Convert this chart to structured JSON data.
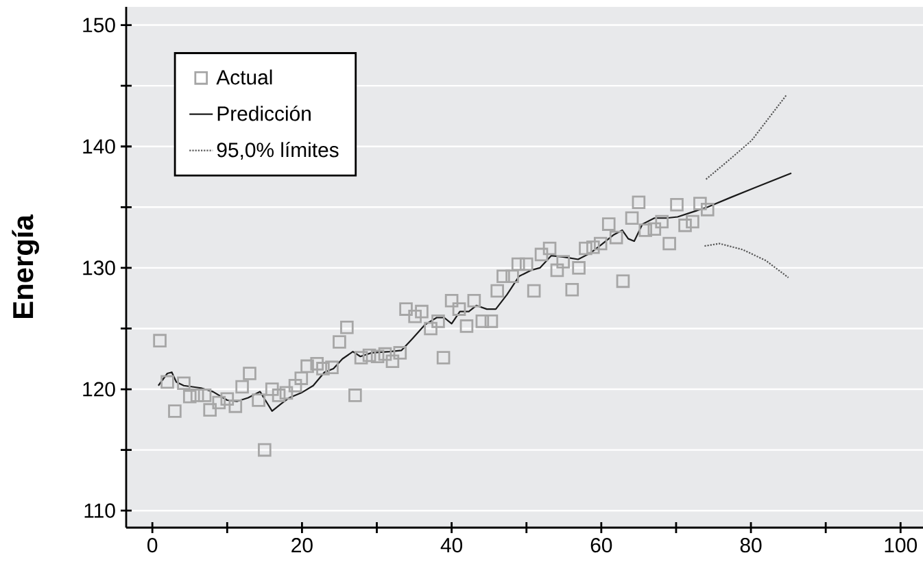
{
  "chart_data": {
    "type": "scatter",
    "ylabel": "Energía",
    "xlim": [
      -3.5,
      103
    ],
    "ylim": [
      108.6,
      151.5
    ],
    "xticks": [
      0,
      {
        "value": 10,
        "label": null
      },
      20,
      {
        "value": 30,
        "label": null
      },
      40,
      {
        "value": 50,
        "label": null
      },
      60,
      {
        "value": 70,
        "label": null
      },
      80,
      {
        "value": 90,
        "label": null
      },
      100
    ],
    "yticks": [
      110,
      {
        "value": 115,
        "label": null
      },
      120,
      {
        "value": 125,
        "label": null
      },
      130,
      {
        "value": 135,
        "label": null
      },
      140,
      {
        "value": 145,
        "label": null
      },
      150
    ],
    "grid": "y",
    "legend": "top left",
    "series": [
      {
        "name": "Actual",
        "marker": "square",
        "color": "#a6a6a6",
        "x": [
          1,
          2,
          3,
          4.2,
          5,
          6,
          7,
          7.7,
          8.9,
          10,
          11.1,
          12,
          13,
          14.2,
          15,
          16,
          16.9,
          17.9,
          19.1,
          19.9,
          20.7,
          22,
          22.8,
          24,
          25,
          26,
          27.1,
          27.9,
          29,
          30.1,
          31.1,
          32.1,
          33.1,
          33.9,
          35.1,
          36,
          37.2,
          38.2,
          38.9,
          40,
          41,
          42,
          43,
          44.1,
          45.3,
          46.1,
          46.9,
          48.1,
          48.9,
          50,
          51,
          52,
          53.1,
          54.1,
          54.9,
          56.1,
          57,
          57.9,
          58.9,
          59.9,
          61,
          62,
          62.9,
          64.1,
          65,
          65.9,
          67.1,
          68.1,
          69.1,
          70.1,
          71.2,
          72.2,
          73.2,
          74.2
        ],
        "values": [
          124.0,
          120.6,
          118.2,
          120.5,
          119.4,
          119.5,
          119.5,
          118.3,
          118.9,
          119.2,
          118.6,
          120.2,
          121.3,
          119.1,
          115.0,
          120.0,
          119.5,
          119.7,
          120.3,
          120.9,
          121.9,
          122.1,
          121.7,
          121.8,
          123.9,
          125.1,
          119.5,
          122.6,
          122.8,
          122.7,
          122.9,
          122.3,
          123.0,
          126.6,
          126.0,
          126.4,
          125.0,
          125.6,
          122.6,
          127.3,
          126.6,
          125.2,
          127.3,
          125.6,
          125.6,
          128.1,
          129.3,
          129.3,
          130.3,
          130.3,
          128.1,
          131.1,
          131.6,
          129.8,
          130.5,
          128.2,
          130.0,
          131.6,
          131.7,
          132.0,
          133.6,
          132.5,
          128.9,
          134.1,
          135.4,
          133.1,
          133.2,
          133.8,
          132.0,
          135.2,
          133.5,
          133.8,
          135.3,
          134.8
        ]
      },
      {
        "name": "Predicción",
        "type": "line",
        "line_style": "solid",
        "color": "#1a1a1a",
        "x": [
          0.8,
          2,
          2.6,
          3.2,
          4.2,
          6.5,
          8.1,
          10,
          11.3,
          12.8,
          14.4,
          15.2,
          16,
          17.2,
          18.3,
          19.9,
          21.5,
          23,
          24.2,
          25.4,
          26.8,
          27.8,
          29.3,
          31.7,
          33.3,
          34.8,
          36.4,
          38,
          39,
          40,
          41.1,
          42.3,
          43.3,
          44.7,
          45.9,
          47.4,
          49,
          50.6,
          51.8,
          53.3,
          54.9,
          56.9,
          58.5,
          60,
          61.6,
          62.8,
          63.6,
          64.4,
          65.5,
          67.1,
          68.7,
          70.2,
          72.2,
          74.2,
          77.3,
          80.5,
          85.4
        ],
        "values": [
          120.3,
          121.3,
          121.4,
          120.6,
          120.3,
          120.1,
          119.8,
          119.1,
          119.0,
          119.3,
          119.8,
          119.0,
          118.2,
          118.8,
          119.3,
          119.7,
          120.3,
          121.4,
          121.7,
          122.5,
          123.1,
          122.7,
          123.0,
          123.1,
          123.2,
          124.2,
          125.3,
          125.9,
          125.9,
          125.4,
          126.4,
          126.4,
          126.9,
          126.6,
          126.6,
          127.8,
          129.3,
          129.8,
          130.0,
          131.0,
          130.9,
          130.7,
          131.2,
          131.9,
          132.7,
          133.1,
          132.4,
          132.2,
          133.6,
          134.1,
          134.1,
          134.2,
          134.6,
          135.0,
          135.8,
          136.6,
          137.8
        ]
      },
      {
        "name": "95,0% límites",
        "type": "line",
        "line_style": "dotted",
        "color": "#555555",
        "x": [
          74.0,
          77.3,
          80.1,
          84.7
        ],
        "values": [
          137.3,
          139.0,
          140.5,
          144.2
        ]
      },
      {
        "type": "line",
        "line_style": "dotted",
        "color": "#555555",
        "x": [
          73.8,
          75.8,
          78.9,
          82,
          85
        ],
        "values": [
          131.8,
          132.0,
          131.5,
          130.6,
          129.2
        ]
      }
    ]
  }
}
